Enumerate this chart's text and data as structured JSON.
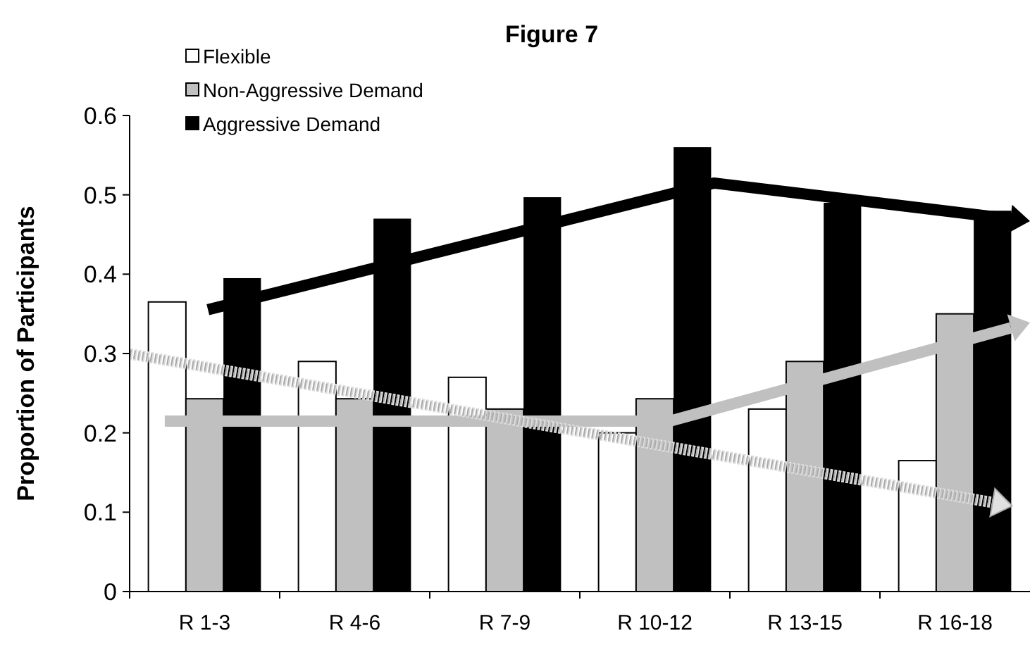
{
  "chart_data": {
    "type": "bar",
    "title": "Figure 7",
    "ylabel": "Proportion of Participants",
    "categories": [
      "R 1-3",
      "R 4-6",
      "R 7-9",
      "R 10-12",
      "R 13-15",
      "R 16-18"
    ],
    "series": [
      {
        "name": "Flexible",
        "color": "#ffffff",
        "values": [
          0.365,
          0.29,
          0.27,
          0.2,
          0.23,
          0.165
        ]
      },
      {
        "name": "Non-Aggressive Demand",
        "color": "#c0c0c0",
        "values": [
          0.243,
          0.243,
          0.23,
          0.243,
          0.29,
          0.35
        ]
      },
      {
        "name": "Aggressive Demand",
        "color": "#000000",
        "values": [
          0.395,
          0.47,
          0.497,
          0.56,
          0.49,
          0.48
        ]
      }
    ],
    "ylim": [
      0,
      0.6
    ],
    "yticks": [
      0,
      0.1,
      0.2,
      0.3,
      0.4,
      0.5,
      0.6
    ],
    "grid": false,
    "legend": "top left"
  }
}
